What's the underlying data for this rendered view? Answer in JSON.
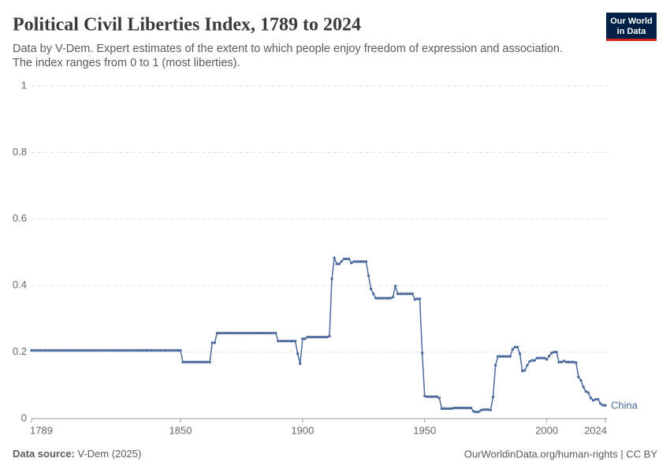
{
  "chart_data": {
    "type": "line",
    "title": "Political Civil Liberties Index, 1789 to 2024",
    "subtitle": [
      "Data by V-Dem. Expert estimates of the extent to which people enjoy freedom of expression and association.",
      "The index ranges from 0 to 1 (most liberties)."
    ],
    "logo": [
      "Our World",
      "in Data"
    ],
    "source_label": "Data source:",
    "source": "V-Dem (2025)",
    "footer": "OurWorldinData.org/human-rights | CC BY",
    "xlim": [
      1789,
      2024
    ],
    "xticks": [
      1789,
      1850,
      1900,
      1950,
      2000,
      2024
    ],
    "ylim": [
      0,
      1
    ],
    "yticks": [
      0,
      0.2,
      0.4,
      0.6,
      0.8,
      1
    ],
    "grid": true,
    "x": [
      1789,
      1790,
      1791,
      1792,
      1793,
      1794,
      1795,
      1796,
      1797,
      1798,
      1799,
      1800,
      1801,
      1802,
      1803,
      1804,
      1805,
      1806,
      1807,
      1808,
      1809,
      1810,
      1811,
      1812,
      1813,
      1814,
      1815,
      1816,
      1817,
      1818,
      1819,
      1820,
      1821,
      1822,
      1823,
      1824,
      1825,
      1826,
      1827,
      1828,
      1829,
      1830,
      1831,
      1832,
      1833,
      1834,
      1835,
      1836,
      1837,
      1838,
      1839,
      1840,
      1841,
      1842,
      1843,
      1844,
      1845,
      1846,
      1847,
      1848,
      1849,
      1850,
      1851,
      1852,
      1853,
      1854,
      1855,
      1856,
      1857,
      1858,
      1859,
      1860,
      1861,
      1862,
      1863,
      1864,
      1865,
      1866,
      1867,
      1868,
      1869,
      1870,
      1871,
      1872,
      1873,
      1874,
      1875,
      1876,
      1877,
      1878,
      1879,
      1880,
      1881,
      1882,
      1883,
      1884,
      1885,
      1886,
      1887,
      1888,
      1889,
      1890,
      1891,
      1892,
      1893,
      1894,
      1895,
      1896,
      1897,
      1898,
      1899,
      1900,
      1901,
      1902,
      1903,
      1904,
      1905,
      1906,
      1907,
      1908,
      1909,
      1910,
      1911,
      1912,
      1913,
      1914,
      1915,
      1916,
      1917,
      1918,
      1919,
      1920,
      1921,
      1922,
      1923,
      1924,
      1925,
      1926,
      1927,
      1928,
      1929,
      1930,
      1931,
      1932,
      1933,
      1934,
      1935,
      1936,
      1937,
      1938,
      1939,
      1940,
      1941,
      1942,
      1943,
      1944,
      1945,
      1946,
      1947,
      1948,
      1949,
      1950,
      1951,
      1952,
      1953,
      1954,
      1955,
      1956,
      1957,
      1958,
      1959,
      1960,
      1961,
      1962,
      1963,
      1964,
      1965,
      1966,
      1967,
      1968,
      1969,
      1970,
      1971,
      1972,
      1973,
      1974,
      1975,
      1976,
      1977,
      1978,
      1979,
      1980,
      1981,
      1982,
      1983,
      1984,
      1985,
      1986,
      1987,
      1988,
      1989,
      1990,
      1991,
      1992,
      1993,
      1994,
      1995,
      1996,
      1997,
      1998,
      1999,
      2000,
      2001,
      2002,
      2003,
      2004,
      2005,
      2006,
      2007,
      2008,
      2009,
      2010,
      2011,
      2012,
      2013,
      2014,
      2015,
      2016,
      2017,
      2018,
      2019,
      2020,
      2021,
      2022,
      2023,
      2024
    ],
    "series": [
      {
        "name": "China",
        "color": "#4c6a9c",
        "values": [
          0.205,
          0.205,
          0.205,
          0.205,
          0.205,
          0.205,
          0.205,
          0.205,
          0.205,
          0.205,
          0.205,
          0.205,
          0.205,
          0.205,
          0.205,
          0.205,
          0.205,
          0.205,
          0.205,
          0.205,
          0.205,
          0.205,
          0.205,
          0.205,
          0.205,
          0.205,
          0.205,
          0.205,
          0.205,
          0.205,
          0.205,
          0.205,
          0.205,
          0.205,
          0.205,
          0.205,
          0.205,
          0.205,
          0.205,
          0.205,
          0.205,
          0.205,
          0.205,
          0.205,
          0.205,
          0.205,
          0.205,
          0.205,
          0.205,
          0.205,
          0.205,
          0.205,
          0.205,
          0.205,
          0.205,
          0.205,
          0.205,
          0.205,
          0.205,
          0.205,
          0.205,
          0.205,
          0.17,
          0.17,
          0.17,
          0.17,
          0.17,
          0.17,
          0.17,
          0.17,
          0.17,
          0.17,
          0.17,
          0.17,
          0.228,
          0.228,
          0.257,
          0.257,
          0.257,
          0.257,
          0.257,
          0.257,
          0.257,
          0.257,
          0.257,
          0.257,
          0.257,
          0.257,
          0.257,
          0.257,
          0.257,
          0.257,
          0.257,
          0.257,
          0.257,
          0.257,
          0.257,
          0.257,
          0.257,
          0.257,
          0.257,
          0.233,
          0.233,
          0.233,
          0.233,
          0.233,
          0.233,
          0.233,
          0.233,
          0.195,
          0.165,
          0.24,
          0.24,
          0.245,
          0.245,
          0.245,
          0.245,
          0.245,
          0.245,
          0.245,
          0.245,
          0.245,
          0.248,
          0.42,
          0.483,
          0.465,
          0.465,
          0.473,
          0.48,
          0.48,
          0.48,
          0.468,
          0.472,
          0.472,
          0.472,
          0.472,
          0.472,
          0.472,
          0.43,
          0.39,
          0.375,
          0.362,
          0.362,
          0.362,
          0.362,
          0.362,
          0.362,
          0.362,
          0.365,
          0.398,
          0.375,
          0.375,
          0.375,
          0.375,
          0.375,
          0.375,
          0.375,
          0.358,
          0.36,
          0.36,
          0.197,
          0.068,
          0.066,
          0.066,
          0.066,
          0.066,
          0.066,
          0.062,
          0.03,
          0.03,
          0.03,
          0.03,
          0.03,
          0.032,
          0.032,
          0.032,
          0.032,
          0.032,
          0.032,
          0.032,
          0.032,
          0.022,
          0.02,
          0.02,
          0.025,
          0.027,
          0.027,
          0.027,
          0.026,
          0.065,
          0.16,
          0.187,
          0.187,
          0.187,
          0.187,
          0.187,
          0.187,
          0.208,
          0.215,
          0.215,
          0.195,
          0.143,
          0.145,
          0.16,
          0.172,
          0.175,
          0.175,
          0.182,
          0.182,
          0.182,
          0.182,
          0.178,
          0.188,
          0.197,
          0.2,
          0.2,
          0.17,
          0.17,
          0.173,
          0.17,
          0.17,
          0.17,
          0.17,
          0.168,
          0.125,
          0.115,
          0.095,
          0.082,
          0.078,
          0.062,
          0.055,
          0.058,
          0.058,
          0.045,
          0.04,
          0.04
        ]
      }
    ]
  }
}
